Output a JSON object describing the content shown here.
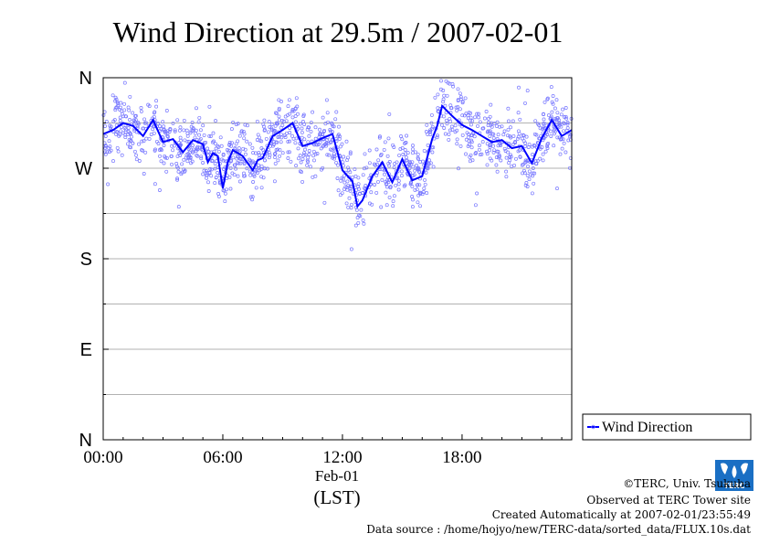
{
  "chart_data": {
    "type": "scatter",
    "title": "Wind Direction at 29.5m / 2007-02-01",
    "xlabel_date": "Feb-01",
    "xlabel_unit": "(LST)",
    "x_ticks": [
      "00:00",
      "06:00",
      "12:00",
      "18:00"
    ],
    "x_tick_hours": [
      0,
      6,
      12,
      18
    ],
    "xlim_hours": [
      0,
      23.5
    ],
    "y_ticks": [
      "N",
      "W",
      "S",
      "E",
      "N"
    ],
    "y_tick_degrees": [
      360,
      270,
      180,
      90,
      0
    ],
    "ylim_degrees": [
      0,
      360
    ],
    "grid": true,
    "legend_position": "right",
    "series": [
      {
        "name": "Wind Direction",
        "style": "line with scatter points",
        "color": "#0000ff",
        "point_color": "#7777ff",
        "hours": [
          0.0,
          0.5,
          1.0,
          1.5,
          2.0,
          2.5,
          3.0,
          3.5,
          4.0,
          4.5,
          5.0,
          5.25,
          5.5,
          5.75,
          6.0,
          6.25,
          6.5,
          7.0,
          7.5,
          7.75,
          8.0,
          8.5,
          9.0,
          9.5,
          10.0,
          10.5,
          11.0,
          11.5,
          12.0,
          12.5,
          12.75,
          13.0,
          13.5,
          14.0,
          14.5,
          15.0,
          15.5,
          16.0,
          16.5,
          16.75,
          17.0,
          17.5,
          18.0,
          18.5,
          19.0,
          19.5,
          20.0,
          20.5,
          21.0,
          21.5,
          22.0,
          22.5,
          23.0,
          23.5
        ],
        "degrees": [
          304,
          308,
          315,
          312,
          302,
          318,
          296,
          299,
          286,
          298,
          294,
          276,
          285,
          282,
          250,
          276,
          288,
          282,
          268,
          278,
          280,
          302,
          308,
          315,
          292,
          295,
          300,
          304,
          268,
          257,
          232,
          238,
          262,
          276,
          256,
          279,
          258,
          262,
          299,
          312,
          332,
          322,
          313,
          308,
          302,
          296,
          298,
          290,
          292,
          275,
          300,
          318,
          302,
          308
        ]
      }
    ]
  },
  "legend": {
    "label": "Wind Direction"
  },
  "footer": {
    "copyright": "©TERC, Univ. Tsukuba",
    "observed": "Observed at TERC Tower site",
    "created": "Created Automatically at 2007-02-01/23:55:49",
    "source": "Data source : /home/hojyo/new/TERC-data/sorted_data/FLUX.10s.dat"
  },
  "logo": {
    "text": "TERC"
  }
}
